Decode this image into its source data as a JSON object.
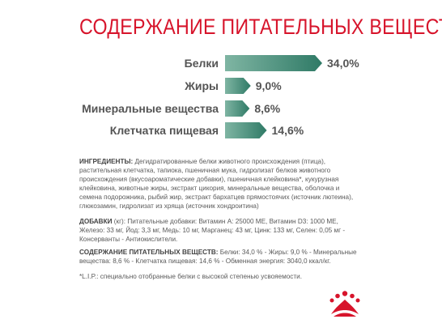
{
  "title": "СОДЕРЖАНИЕ ПИТАТЕЛЬНЫХ ВЕЩЕСТВ",
  "chart_data": {
    "type": "bar",
    "orientation": "horizontal",
    "categories": [
      "Белки",
      "Жиры",
      "Минеральные вещества",
      "Клетчатка пищевая"
    ],
    "values": [
      34.0,
      9.0,
      8.6,
      14.6
    ],
    "value_labels": [
      "34,0%",
      "9,0%",
      "8,6%",
      "14,6%"
    ],
    "unit": "%",
    "xlim": [
      0,
      34.0
    ],
    "colors": [
      "#7fb5a3",
      "#2f7a66"
    ],
    "grid": false,
    "legend": "none"
  },
  "ingredients": {
    "heading": "ИНГРЕДИЕНТЫ:",
    "text": " Дегидратированные белки животного происхождения (птица), растительная клетчатка, тапиока, пшеничная мука, гидролизат белков животного происхождения (вкусоароматические добавки), пшеничная клейковина*, кукурузная клейковина, животные жиры, экстракт цикория, минеральные вещества, оболочка и семена подорожника, рыбий жир, экстракт бархатцев прямостоячих (источник лютеина), глюкозамин, гидролизат из хряща (источник хондроитина)"
  },
  "additives": {
    "heading": "ДОБАВКИ",
    "text": " (кг): Питательные добавки: Витамин А: 25000 МЕ, Витамин D3: 1000 МЕ, Железо: 33 мг, Йод: 3,3 мг, Медь: 10 мг, Марганец: 43 мг, Цинк: 133 мг, Селен: 0,05 мг - Консерванты - Антиокислители."
  },
  "nutrients": {
    "heading": "СОДЕРЖАНИЕ ПИТАТЕЛЬНЫХ ВЕЩЕСТВ:",
    "text": " Белки: 34,0 % - Жиры: 9,0 % - Минеральные вещества: 8,6 % - Клетчатка пищевая: 14,6 % - Обменная энергия: 3040,0 ккал/кг."
  },
  "footnote": "*L.I.P.: специально отобранные белки с высокой степенью усвояемости.",
  "logo": {
    "icon": "royal-canin-crown-icon",
    "color": "#d7142b"
  }
}
